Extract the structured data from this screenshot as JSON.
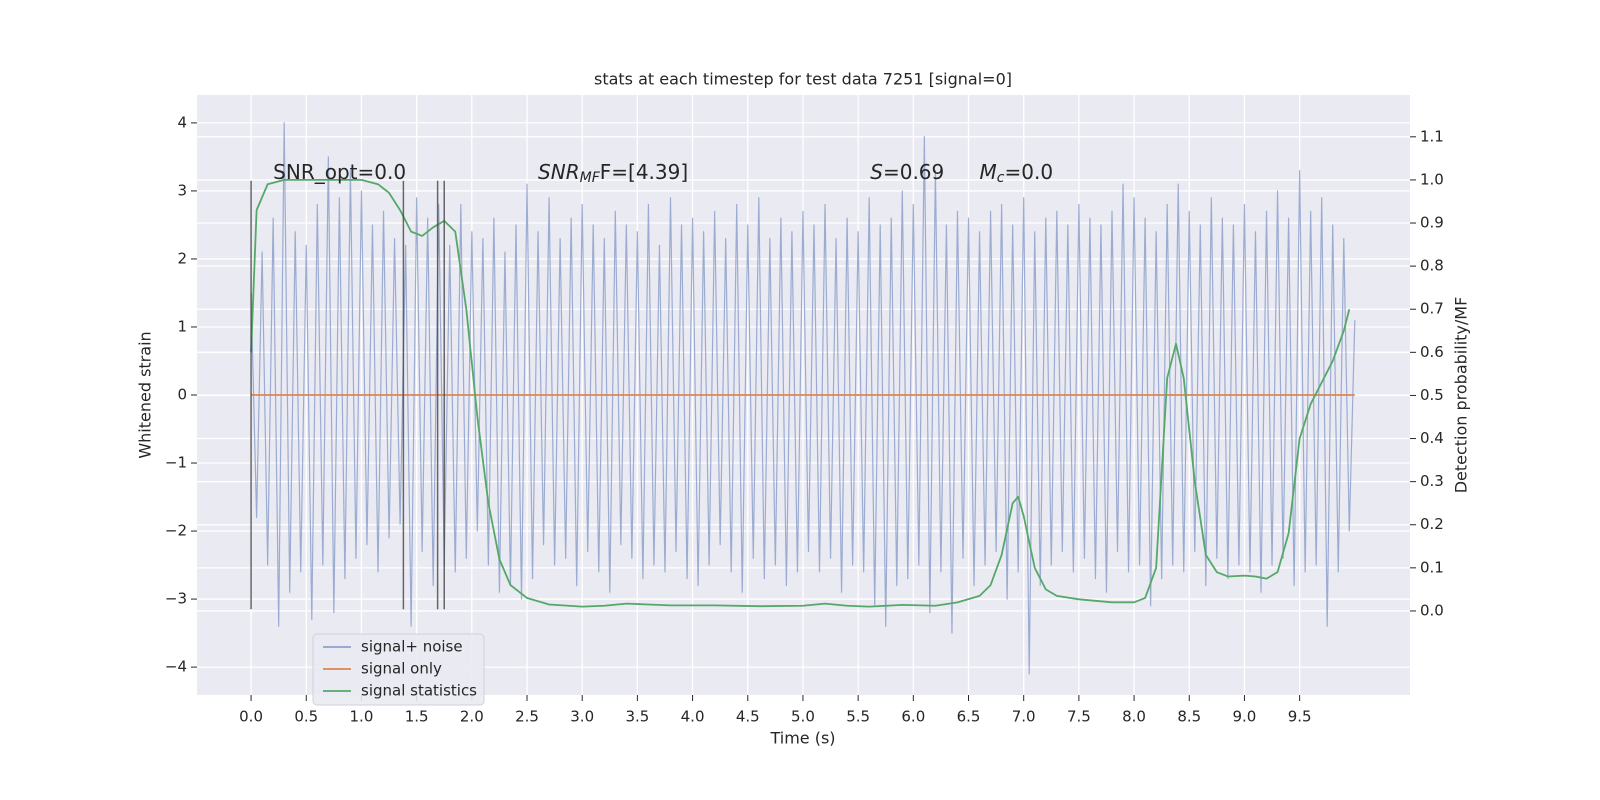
{
  "chart_data": {
    "type": "line",
    "title": "stats at each timestep for test data 7251 [signal=0]",
    "xlabel": "Time (s)",
    "ylabel": "Whitened strain",
    "y2label": "Detection probability/MF",
    "xlim": [
      -0.49,
      10.5
    ],
    "ylim": [
      -4.41,
      4.41
    ],
    "y2lim": [
      -0.195,
      1.197
    ],
    "xticks": [
      {
        "value": 0,
        "label": "0.0"
      },
      0.5,
      {
        "value": 1,
        "label": "1.0"
      },
      1.5,
      {
        "value": 2,
        "label": "2.0"
      },
      2.5,
      {
        "value": 3,
        "label": "3.0"
      },
      3.5,
      {
        "value": 4,
        "label": "4.0"
      },
      4.5,
      {
        "value": 5,
        "label": "5.0"
      },
      5.5,
      {
        "value": 6,
        "label": "6.0"
      },
      6.5,
      {
        "value": 7,
        "label": "7.0"
      },
      7.5,
      {
        "value": 8,
        "label": "8.0"
      },
      8.5,
      {
        "value": 9,
        "label": "9.0"
      },
      9.5
    ],
    "yticks": [
      {
        "value": -4,
        "label": "−4"
      },
      {
        "value": -3,
        "label": "−3"
      },
      {
        "value": -2,
        "label": "−2"
      },
      {
        "value": -1,
        "label": "−1"
      },
      0,
      1,
      2,
      3,
      4
    ],
    "y2ticks": [
      {
        "value": 0,
        "label": "0.0"
      },
      0.1,
      0.2,
      0.3,
      0.4,
      0.5,
      0.6,
      0.7,
      0.8,
      0.9,
      {
        "value": 1,
        "label": "1.0"
      },
      1.1
    ],
    "grid": true,
    "legend": "lower left",
    "series": [
      {
        "name": "signal+ noise",
        "color": "#8da0cb",
        "x": [
          0,
          0.05,
          0.1,
          0.15,
          0.2,
          0.25,
          0.3,
          0.35,
          0.4,
          0.45,
          0.5,
          0.55,
          0.6,
          0.65,
          0.7,
          0.75,
          0.8,
          0.85,
          0.9,
          0.95,
          1,
          1.05,
          1.1,
          1.15,
          1.2,
          1.25,
          1.3,
          1.35,
          1.4,
          1.45,
          1.5,
          1.55,
          1.6,
          1.65,
          1.7,
          1.75,
          1.8,
          1.85,
          1.9,
          1.95,
          2,
          2.05,
          2.1,
          2.15,
          2.2,
          2.25,
          2.3,
          2.35,
          2.4,
          2.45,
          2.5,
          2.55,
          2.6,
          2.65,
          2.7,
          2.75,
          2.8,
          2.85,
          2.9,
          2.95,
          3,
          3.05,
          3.1,
          3.15,
          3.2,
          3.25,
          3.3,
          3.35,
          3.4,
          3.45,
          3.5,
          3.55,
          3.6,
          3.65,
          3.7,
          3.75,
          3.8,
          3.85,
          3.9,
          3.95,
          4,
          4.05,
          4.1,
          4.15,
          4.2,
          4.25,
          4.3,
          4.35,
          4.4,
          4.45,
          4.5,
          4.55,
          4.6,
          4.65,
          4.7,
          4.75,
          4.8,
          4.85,
          4.9,
          4.95,
          5,
          5.05,
          5.1,
          5.15,
          5.2,
          5.25,
          5.3,
          5.35,
          5.4,
          5.45,
          5.5,
          5.55,
          5.6,
          5.65,
          5.7,
          5.75,
          5.8,
          5.85,
          5.9,
          5.95,
          6,
          6.05,
          6.1,
          6.15,
          6.2,
          6.25,
          6.3,
          6.35,
          6.4,
          6.45,
          6.5,
          6.55,
          6.6,
          6.65,
          6.7,
          6.75,
          6.8,
          6.85,
          6.9,
          6.95,
          7,
          7.05,
          7.1,
          7.15,
          7.2,
          7.25,
          7.3,
          7.35,
          7.4,
          7.45,
          7.5,
          7.55,
          7.6,
          7.65,
          7.7,
          7.75,
          7.8,
          7.85,
          7.9,
          7.95,
          8,
          8.05,
          8.1,
          8.15,
          8.2,
          8.25,
          8.3,
          8.35,
          8.4,
          8.45,
          8.5,
          8.55,
          8.6,
          8.65,
          8.7,
          8.75,
          8.8,
          8.85,
          8.9,
          8.95,
          9,
          9.05,
          9.1,
          9.15,
          9.2,
          9.25,
          9.3,
          9.35,
          9.4,
          9.45,
          9.5,
          9.55,
          9.6,
          9.65,
          9.7,
          9.75,
          9.8,
          9.85,
          9.9,
          9.95,
          10
        ],
        "values": [
          1.5,
          -1.8,
          2.1,
          -2.5,
          2.6,
          -3.4,
          4.0,
          -2.9,
          2.4,
          -2.6,
          2.2,
          -3.3,
          2.8,
          -2.5,
          3.5,
          -3.2,
          2.9,
          -2.7,
          3.3,
          -2.4,
          3.0,
          -2.2,
          2.5,
          -2.6,
          2.7,
          -2.1,
          2.3,
          -1.9,
          2.2,
          -3.4,
          2.9,
          -2.3,
          2.6,
          -2.8,
          2.8,
          -2.5,
          2.2,
          -2.6,
          2.8,
          -2.4,
          2.4,
          -2.0,
          2.3,
          -2.5,
          2.6,
          -2.9,
          2.1,
          -2.8,
          2.5,
          -3.0,
          3.1,
          -2.7,
          2.4,
          -2.2,
          2.9,
          -2.5,
          2.3,
          -2.4,
          2.6,
          -2.8,
          2.8,
          -2.3,
          2.5,
          -2.6,
          2.3,
          -2.9,
          2.7,
          -2.2,
          2.5,
          -2.4,
          2.4,
          -2.7,
          2.8,
          -2.5,
          2.2,
          -2.6,
          2.9,
          -2.3,
          2.5,
          -2.7,
          2.6,
          -2.8,
          2.4,
          -2.5,
          2.7,
          -2.2,
          2.3,
          -2.6,
          2.8,
          -2.9,
          2.5,
          -2.4,
          2.9,
          -2.7,
          2.3,
          -2.5,
          2.6,
          -2.8,
          2.4,
          -2.6,
          2.7,
          -2.3,
          2.5,
          -2.6,
          2.8,
          -2.4,
          2.3,
          -2.9,
          2.6,
          -2.5,
          2.4,
          -2.6,
          2.9,
          -3.1,
          2.5,
          -3.4,
          2.6,
          -2.8,
          3.0,
          -2.7,
          2.8,
          -2.5,
          3.8,
          -3.2,
          3.3,
          -2.6,
          2.5,
          -3.5,
          2.7,
          -2.4,
          2.6,
          -2.8,
          2.4,
          -2.5,
          2.7,
          -2.3,
          2.8,
          -3.0,
          2.5,
          -2.6,
          2.9,
          -4.1,
          2.4,
          -2.8,
          2.6,
          -2.5,
          2.7,
          -2.3,
          2.5,
          -2.6,
          2.8,
          -2.4,
          2.6,
          -2.7,
          2.5,
          -2.9,
          2.7,
          -2.3,
          3.1,
          -2.6,
          2.9,
          -2.5,
          2.6,
          -3.1,
          2.4,
          -2.7,
          2.8,
          -2.5,
          3.1,
          -2.6,
          2.7,
          -2.3,
          2.5,
          -2.8,
          2.9,
          -2.4,
          2.6,
          -2.7,
          2.5,
          -2.5,
          2.8,
          -2.6,
          2.4,
          -2.9,
          2.7,
          -2.5,
          3.0,
          -2.4,
          2.6,
          -2.8,
          3.3,
          -2.6,
          2.7,
          -2.5,
          2.9,
          -3.4,
          2.5,
          -2.6,
          2.3,
          -2.0,
          1.1
        ]
      },
      {
        "name": "signal only",
        "color": "#dd8452",
        "x": [
          0,
          10
        ],
        "values": [
          0,
          0
        ]
      },
      {
        "name": "signal statistics",
        "color": "#55a868",
        "axis": "y2",
        "x": [
          0,
          0.05,
          0.15,
          0.3,
          0.5,
          0.8,
          1.0,
          1.15,
          1.25,
          1.35,
          1.45,
          1.55,
          1.65,
          1.75,
          1.85,
          1.95,
          2.05,
          2.15,
          2.25,
          2.35,
          2.5,
          2.7,
          3.0,
          3.2,
          3.4,
          3.6,
          3.8,
          4.2,
          4.6,
          5.0,
          5.2,
          5.4,
          5.6,
          5.9,
          6.2,
          6.4,
          6.6,
          6.7,
          6.8,
          6.9,
          6.95,
          7.0,
          7.1,
          7.2,
          7.3,
          7.5,
          7.8,
          8.0,
          8.1,
          8.2,
          8.3,
          8.38,
          8.45,
          8.55,
          8.65,
          8.75,
          8.85,
          9.0,
          9.1,
          9.2,
          9.3,
          9.4,
          9.5,
          9.6,
          9.7,
          9.8,
          9.9,
          9.95
        ],
        "values": [
          0.6,
          0.93,
          0.99,
          1.0,
          1.0,
          1.0,
          1.0,
          0.99,
          0.97,
          0.93,
          0.88,
          0.87,
          0.89,
          0.905,
          0.88,
          0.7,
          0.45,
          0.25,
          0.12,
          0.06,
          0.03,
          0.015,
          0.01,
          0.012,
          0.017,
          0.015,
          0.013,
          0.013,
          0.011,
          0.012,
          0.017,
          0.012,
          0.01,
          0.014,
          0.012,
          0.02,
          0.035,
          0.06,
          0.13,
          0.25,
          0.265,
          0.22,
          0.1,
          0.05,
          0.035,
          0.027,
          0.02,
          0.02,
          0.03,
          0.1,
          0.54,
          0.62,
          0.54,
          0.3,
          0.13,
          0.09,
          0.08,
          0.082,
          0.08,
          0.075,
          0.09,
          0.18,
          0.4,
          0.48,
          0.53,
          0.58,
          0.65,
          0.7
        ]
      }
    ],
    "vlines": {
      "x": [
        0,
        1.38,
        1.69,
        1.75
      ],
      "ymin": -3.15,
      "ymax": 3.15
    },
    "annotations": [
      {
        "text": "SNR_opt=0.0",
        "x": 0.2,
        "y": 3.26
      },
      {
        "text": "SNR",
        "sub": "MF",
        "rest": "F=[4.39]",
        "x": 2.6,
        "y": 3.26
      },
      {
        "text": "S",
        "rest": "=0.69",
        "x": 5.61,
        "y": 3.26
      },
      {
        "text": "M",
        "sub": "c",
        "rest": "=0.0",
        "x": 6.6,
        "y": 3.26
      }
    ]
  }
}
